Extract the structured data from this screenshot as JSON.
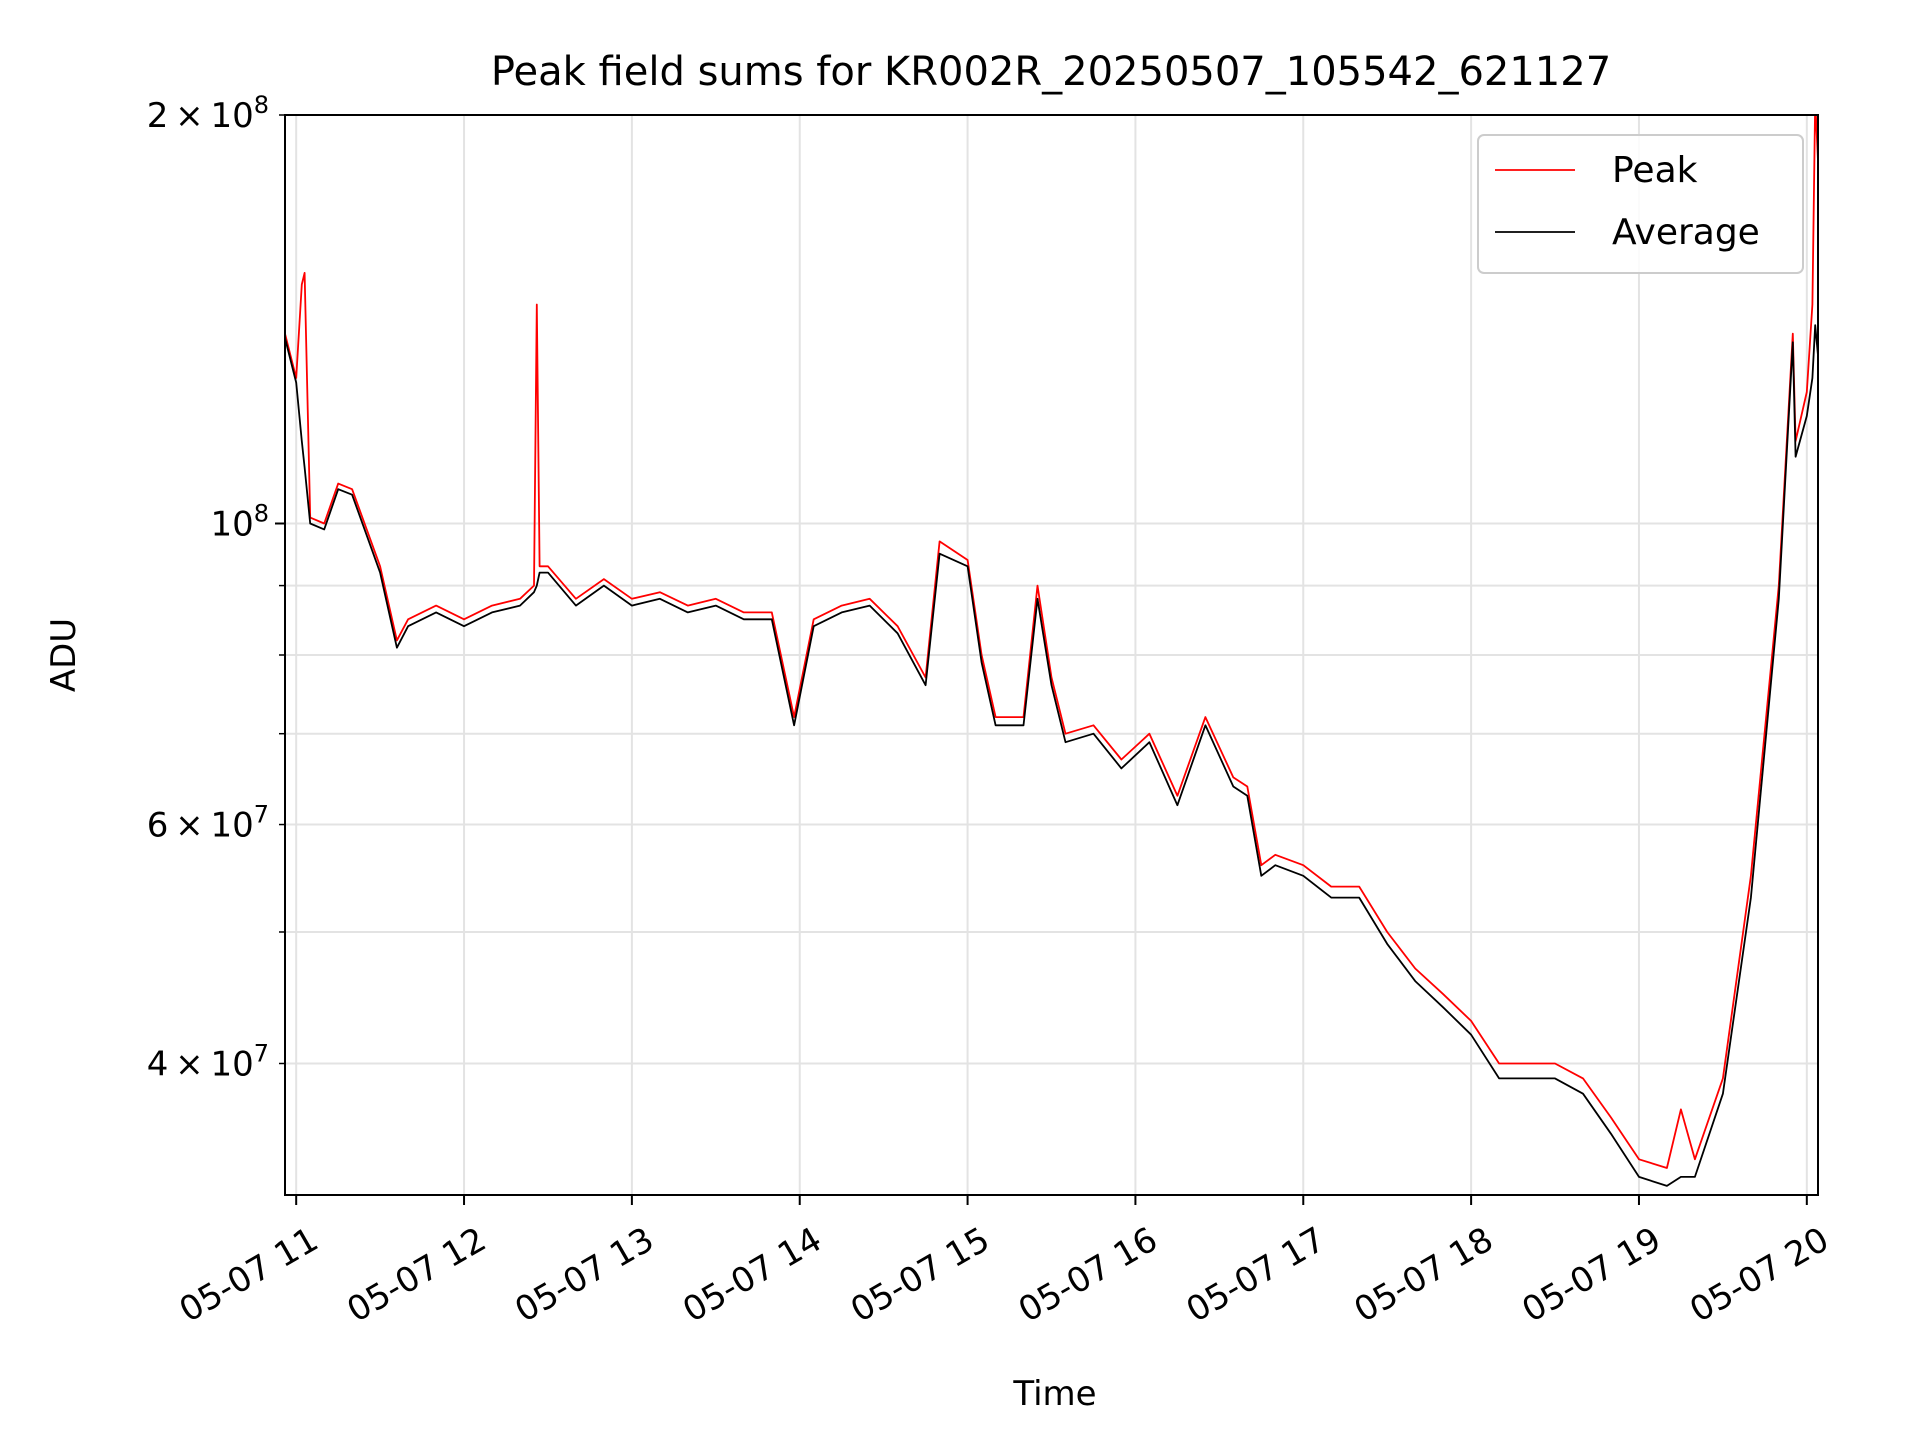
{
  "chart_data": {
    "type": "line",
    "title": "Peak field sums for KR002R_20250507_105542_621127",
    "xlabel": "Time",
    "ylabel": "ADU",
    "yscale": "log",
    "xlim": [
      "2025-05-07T10:56",
      "2025-05-07T20:04"
    ],
    "ylim": [
      32000000,
      200000000
    ],
    "grid": true,
    "legend": "top-right",
    "x_ticks": [
      {
        "value": "2025-05-07T11:00",
        "label": "05-07 11"
      },
      {
        "value": "2025-05-07T12:00",
        "label": "05-07 12"
      },
      {
        "value": "2025-05-07T13:00",
        "label": "05-07 13"
      },
      {
        "value": "2025-05-07T14:00",
        "label": "05-07 14"
      },
      {
        "value": "2025-05-07T15:00",
        "label": "05-07 15"
      },
      {
        "value": "2025-05-07T16:00",
        "label": "05-07 16"
      },
      {
        "value": "2025-05-07T17:00",
        "label": "05-07 17"
      },
      {
        "value": "2025-05-07T18:00",
        "label": "05-07 18"
      },
      {
        "value": "2025-05-07T19:00",
        "label": "05-07 19"
      },
      {
        "value": "2025-05-07T20:00",
        "label": "05-07 20"
      }
    ],
    "y_major_ticks": [
      {
        "value": 100000000,
        "mant": "",
        "base": "10",
        "exp": "8"
      }
    ],
    "y_labeled_minor_ticks": [
      {
        "value": 200000000,
        "mant": "2",
        "base": "10",
        "exp": "8"
      },
      {
        "value": 60000000,
        "mant": "6",
        "base": "10",
        "exp": "7"
      },
      {
        "value": 40000000,
        "mant": "4",
        "base": "10",
        "exp": "7"
      }
    ],
    "y_minor_ticks": [
      40000000,
      50000000,
      60000000,
      70000000,
      80000000,
      90000000,
      200000000
    ],
    "series": [
      {
        "name": "Peak",
        "color": "#ff0000",
        "x": [
          "2025-05-07T10:56",
          "2025-05-07T11:00",
          "2025-05-07T11:02",
          "2025-05-07T11:03",
          "2025-05-07T11:05",
          "2025-05-07T11:10",
          "2025-05-07T11:15",
          "2025-05-07T11:20",
          "2025-05-07T11:30",
          "2025-05-07T11:36",
          "2025-05-07T11:40",
          "2025-05-07T11:50",
          "2025-05-07T12:00",
          "2025-05-07T12:10",
          "2025-05-07T12:20",
          "2025-05-07T12:25",
          "2025-05-07T12:26",
          "2025-05-07T12:27",
          "2025-05-07T12:30",
          "2025-05-07T12:40",
          "2025-05-07T12:50",
          "2025-05-07T13:00",
          "2025-05-07T13:10",
          "2025-05-07T13:20",
          "2025-05-07T13:30",
          "2025-05-07T13:40",
          "2025-05-07T13:50",
          "2025-05-07T13:58",
          "2025-05-07T14:05",
          "2025-05-07T14:15",
          "2025-05-07T14:25",
          "2025-05-07T14:35",
          "2025-05-07T14:45",
          "2025-05-07T14:50",
          "2025-05-07T15:00",
          "2025-05-07T15:05",
          "2025-05-07T15:10",
          "2025-05-07T15:20",
          "2025-05-07T15:25",
          "2025-05-07T15:30",
          "2025-05-07T15:35",
          "2025-05-07T15:45",
          "2025-05-07T15:55",
          "2025-05-07T16:05",
          "2025-05-07T16:15",
          "2025-05-07T16:25",
          "2025-05-07T16:35",
          "2025-05-07T16:40",
          "2025-05-07T16:45",
          "2025-05-07T16:50",
          "2025-05-07T17:00",
          "2025-05-07T17:10",
          "2025-05-07T17:20",
          "2025-05-07T17:30",
          "2025-05-07T17:40",
          "2025-05-07T17:50",
          "2025-05-07T18:00",
          "2025-05-07T18:10",
          "2025-05-07T18:20",
          "2025-05-07T18:30",
          "2025-05-07T18:40",
          "2025-05-07T18:50",
          "2025-05-07T19:00",
          "2025-05-07T19:10",
          "2025-05-07T19:15",
          "2025-05-07T19:20",
          "2025-05-07T19:30",
          "2025-05-07T19:40",
          "2025-05-07T19:50",
          "2025-05-07T19:55",
          "2025-05-07T19:56",
          "2025-05-07T20:00",
          "2025-05-07T20:02",
          "2025-05-07T20:03",
          "2025-05-07T20:04"
        ],
        "values": [
          138000000,
          128000000,
          150000000,
          153000000,
          101000000,
          100000000,
          107000000,
          106000000,
          93000000,
          82000000,
          85000000,
          87000000,
          85000000,
          87000000,
          88000000,
          90000000,
          145000000,
          93000000,
          93000000,
          88000000,
          91000000,
          88000000,
          89000000,
          87000000,
          88000000,
          86000000,
          86000000,
          72000000,
          85000000,
          87000000,
          88000000,
          84000000,
          77000000,
          97000000,
          94000000,
          80000000,
          72000000,
          72000000,
          90000000,
          77000000,
          70000000,
          71000000,
          67000000,
          70000000,
          63000000,
          72000000,
          65000000,
          64000000,
          56000000,
          57000000,
          56000000,
          54000000,
          54000000,
          50000000,
          47000000,
          45000000,
          43000000,
          40000000,
          40000000,
          40000000,
          39000000,
          36500000,
          34000000,
          33500000,
          37000000,
          34000000,
          39000000,
          55000000,
          90000000,
          138000000,
          115000000,
          125000000,
          145000000,
          205000000,
          185000000
        ]
      },
      {
        "name": "Average",
        "color": "#000000",
        "x": [
          "2025-05-07T10:56",
          "2025-05-07T11:00",
          "2025-05-07T11:02",
          "2025-05-07T11:03",
          "2025-05-07T11:05",
          "2025-05-07T11:10",
          "2025-05-07T11:15",
          "2025-05-07T11:20",
          "2025-05-07T11:30",
          "2025-05-07T11:36",
          "2025-05-07T11:40",
          "2025-05-07T11:50",
          "2025-05-07T12:00",
          "2025-05-07T12:10",
          "2025-05-07T12:20",
          "2025-05-07T12:25",
          "2025-05-07T12:26",
          "2025-05-07T12:27",
          "2025-05-07T12:30",
          "2025-05-07T12:40",
          "2025-05-07T12:50",
          "2025-05-07T13:00",
          "2025-05-07T13:10",
          "2025-05-07T13:20",
          "2025-05-07T13:30",
          "2025-05-07T13:40",
          "2025-05-07T13:50",
          "2025-05-07T13:58",
          "2025-05-07T14:05",
          "2025-05-07T14:15",
          "2025-05-07T14:25",
          "2025-05-07T14:35",
          "2025-05-07T14:45",
          "2025-05-07T14:50",
          "2025-05-07T15:00",
          "2025-05-07T15:05",
          "2025-05-07T15:10",
          "2025-05-07T15:20",
          "2025-05-07T15:25",
          "2025-05-07T15:30",
          "2025-05-07T15:35",
          "2025-05-07T15:45",
          "2025-05-07T15:55",
          "2025-05-07T16:05",
          "2025-05-07T16:15",
          "2025-05-07T16:25",
          "2025-05-07T16:35",
          "2025-05-07T16:40",
          "2025-05-07T16:45",
          "2025-05-07T16:50",
          "2025-05-07T17:00",
          "2025-05-07T17:10",
          "2025-05-07T17:20",
          "2025-05-07T17:30",
          "2025-05-07T17:40",
          "2025-05-07T17:50",
          "2025-05-07T18:00",
          "2025-05-07T18:10",
          "2025-05-07T18:20",
          "2025-05-07T18:30",
          "2025-05-07T18:40",
          "2025-05-07T18:50",
          "2025-05-07T19:00",
          "2025-05-07T19:10",
          "2025-05-07T19:15",
          "2025-05-07T19:20",
          "2025-05-07T19:30",
          "2025-05-07T19:40",
          "2025-05-07T19:50",
          "2025-05-07T19:55",
          "2025-05-07T19:56",
          "2025-05-07T20:00",
          "2025-05-07T20:02",
          "2025-05-07T20:03",
          "2025-05-07T20:04"
        ],
        "values": [
          137000000,
          127000000,
          115000000,
          110000000,
          100000000,
          99000000,
          106000000,
          105000000,
          92000000,
          81000000,
          84000000,
          86000000,
          84000000,
          86000000,
          87000000,
          89000000,
          90000000,
          92000000,
          92000000,
          87000000,
          90000000,
          87000000,
          88000000,
          86000000,
          87000000,
          85000000,
          85000000,
          71000000,
          84000000,
          86000000,
          87000000,
          83000000,
          76000000,
          95000000,
          93000000,
          79000000,
          71000000,
          71000000,
          88000000,
          76000000,
          69000000,
          70000000,
          66000000,
          69000000,
          62000000,
          71000000,
          64000000,
          63000000,
          55000000,
          56000000,
          55000000,
          53000000,
          53000000,
          49000000,
          46000000,
          44000000,
          42000000,
          39000000,
          39000000,
          39000000,
          38000000,
          35500000,
          33000000,
          32500000,
          33000000,
          33000000,
          38000000,
          53000000,
          88000000,
          136000000,
          112000000,
          120000000,
          128000000,
          140000000,
          133000000
        ]
      }
    ]
  }
}
